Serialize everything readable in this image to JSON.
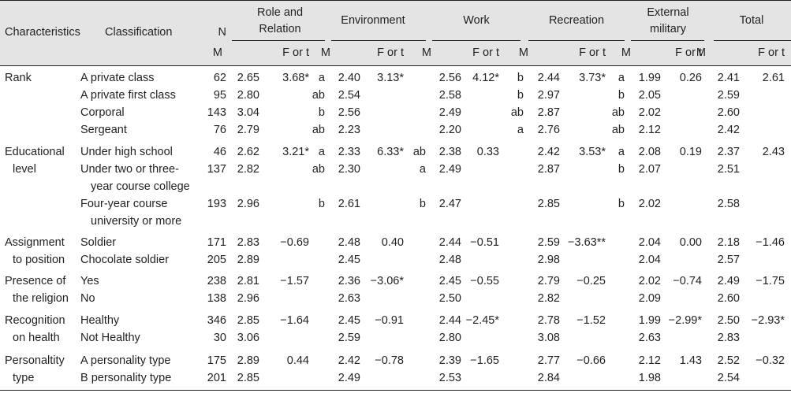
{
  "table": {
    "headers": {
      "characteristics": "Characteristics",
      "classification": "Classification",
      "n": "N",
      "groups": [
        "Role and Relation",
        "Environment",
        "Work",
        "Recreation",
        "External military",
        "Total"
      ],
      "group_lines": [
        [
          "Role and",
          "Relation"
        ],
        [
          "Environment"
        ],
        [
          "Work"
        ],
        [
          "Recreation"
        ],
        [
          "External",
          "military"
        ],
        [
          "Total"
        ]
      ],
      "m": "M",
      "f_or_t": "F or t"
    },
    "rows": [
      {
        "char": [
          "Rank"
        ],
        "cls": [
          "A private class"
        ],
        "n": "62",
        "cells": [
          [
            "2.65",
            "3.68*",
            "a"
          ],
          [
            "2.40",
            "3.13*",
            ""
          ],
          [
            "2.56",
            "4.12*",
            "b"
          ],
          [
            "2.44",
            "3.73*",
            "a"
          ],
          [
            "1.99",
            "0.26",
            ""
          ],
          [
            "2.41",
            "2.61",
            ""
          ]
        ]
      },
      {
        "char": [],
        "cls": [
          "A private first class"
        ],
        "n": "95",
        "cells": [
          [
            "2.80",
            "",
            "ab"
          ],
          [
            "2.54",
            "",
            ""
          ],
          [
            "2.58",
            "",
            "b"
          ],
          [
            "2.97",
            "",
            "b"
          ],
          [
            "2.05",
            "",
            ""
          ],
          [
            "2.59",
            "",
            ""
          ]
        ]
      },
      {
        "char": [],
        "cls": [
          "Corporal"
        ],
        "n": "143",
        "cells": [
          [
            "3.04",
            "",
            "b"
          ],
          [
            "2.56",
            "",
            ""
          ],
          [
            "2.49",
            "",
            "ab"
          ],
          [
            "2.87",
            "",
            "ab"
          ],
          [
            "2.02",
            "",
            ""
          ],
          [
            "2.60",
            "",
            ""
          ]
        ]
      },
      {
        "char": [],
        "cls": [
          "Sergeant"
        ],
        "n": "76",
        "cells": [
          [
            "2.79",
            "",
            "ab"
          ],
          [
            "2.23",
            "",
            ""
          ],
          [
            "2.20",
            "",
            "a"
          ],
          [
            "2.76",
            "",
            "ab"
          ],
          [
            "2.12",
            "",
            ""
          ],
          [
            "2.42",
            "",
            ""
          ]
        ]
      },
      {
        "char": [
          "Educational",
          "level"
        ],
        "cls": [
          "Under high school"
        ],
        "n": "46",
        "cells": [
          [
            "2.62",
            "3.21*",
            "a"
          ],
          [
            "2.33",
            "6.33*",
            "ab"
          ],
          [
            "2.38",
            "0.33",
            ""
          ],
          [
            "2.42",
            "3.53*",
            "a"
          ],
          [
            "2.08",
            "0.19",
            ""
          ],
          [
            "2.37",
            "2.43",
            ""
          ]
        ]
      },
      {
        "char": [],
        "cls": [
          "Under two or three-",
          "year course college"
        ],
        "n": "137",
        "cells": [
          [
            "2.82",
            "",
            "ab"
          ],
          [
            "2.30",
            "",
            "a"
          ],
          [
            "2.49",
            "",
            ""
          ],
          [
            "2.87",
            "",
            "b"
          ],
          [
            "2.07",
            "",
            ""
          ],
          [
            "2.51",
            "",
            ""
          ]
        ]
      },
      {
        "char": [],
        "cls": [
          "Four-year course",
          "university or more"
        ],
        "n": "193",
        "cells": [
          [
            "2.96",
            "",
            "b"
          ],
          [
            "2.61",
            "",
            "b"
          ],
          [
            "2.47",
            "",
            ""
          ],
          [
            "2.85",
            "",
            "b"
          ],
          [
            "2.02",
            "",
            ""
          ],
          [
            "2.58",
            "",
            ""
          ]
        ]
      },
      {
        "char": [
          "Assignment",
          "to position"
        ],
        "cls": [
          "Soldier"
        ],
        "n": "171",
        "cells": [
          [
            "2.83",
            "−0.69",
            ""
          ],
          [
            "2.48",
            "0.40",
            ""
          ],
          [
            "2.44",
            "−0.51",
            ""
          ],
          [
            "2.59",
            "−3.63**",
            ""
          ],
          [
            "2.04",
            "0.00",
            ""
          ],
          [
            "2.18",
            "−1.46",
            ""
          ]
        ]
      },
      {
        "char": [],
        "cls": [
          "Chocolate soldier"
        ],
        "n": "205",
        "cells": [
          [
            "2.89",
            "",
            ""
          ],
          [
            "2.45",
            "",
            ""
          ],
          [
            "2.48",
            "",
            ""
          ],
          [
            "2.98",
            "",
            ""
          ],
          [
            "2.04",
            "",
            ""
          ],
          [
            "2.57",
            "",
            ""
          ]
        ]
      },
      {
        "char": [
          "Presence of",
          "the religion"
        ],
        "cls": [
          "Yes"
        ],
        "n": "238",
        "cells": [
          [
            "2.81",
            "−1.57",
            ""
          ],
          [
            "2.36",
            "−3.06*",
            ""
          ],
          [
            "2.45",
            "−0.55",
            ""
          ],
          [
            "2.79",
            "−0.25",
            ""
          ],
          [
            "2.02",
            "−0.74",
            ""
          ],
          [
            "2.49",
            "−1.75",
            ""
          ]
        ]
      },
      {
        "char": [],
        "cls": [
          "No"
        ],
        "n": "138",
        "cells": [
          [
            "2.96",
            "",
            ""
          ],
          [
            "2.63",
            "",
            ""
          ],
          [
            "2.50",
            "",
            ""
          ],
          [
            "2.82",
            "",
            ""
          ],
          [
            "2.09",
            "",
            ""
          ],
          [
            "2.60",
            "",
            ""
          ]
        ]
      },
      {
        "char": [
          "Recognition",
          "on health"
        ],
        "cls": [
          "Healthy"
        ],
        "n": "346",
        "cells": [
          [
            "2.85",
            "−1.64",
            ""
          ],
          [
            "2.45",
            "−0.91",
            ""
          ],
          [
            "2.44",
            "−2.45*",
            ""
          ],
          [
            "2.78",
            "−1.52",
            ""
          ],
          [
            "1.99",
            "−2.99*",
            ""
          ],
          [
            "2.50",
            "−2.93*",
            ""
          ]
        ]
      },
      {
        "char": [],
        "cls": [
          "Not Healthy"
        ],
        "n": "30",
        "cells": [
          [
            "3.06",
            "",
            ""
          ],
          [
            "2.59",
            "",
            ""
          ],
          [
            "2.80",
            "",
            ""
          ],
          [
            "3.08",
            "",
            ""
          ],
          [
            "2.63",
            "",
            ""
          ],
          [
            "2.83",
            "",
            ""
          ]
        ]
      },
      {
        "char": [
          "Personaltity",
          "type"
        ],
        "cls": [
          "A personality type"
        ],
        "n": "175",
        "cells": [
          [
            "2.89",
            "0.44",
            ""
          ],
          [
            "2.42",
            "−0.78",
            ""
          ],
          [
            "2.39",
            "−1.65",
            ""
          ],
          [
            "2.77",
            "−0.66",
            ""
          ],
          [
            "2.12",
            "1.43",
            ""
          ],
          [
            "2.52",
            "−0.32",
            ""
          ]
        ]
      },
      {
        "char": [],
        "cls": [
          "B personality type"
        ],
        "n": "201",
        "cells": [
          [
            "2.85",
            "",
            ""
          ],
          [
            "2.49",
            "",
            ""
          ],
          [
            "2.53",
            "",
            ""
          ],
          [
            "2.84",
            "",
            ""
          ],
          [
            "1.98",
            "",
            ""
          ],
          [
            "2.54",
            "",
            ""
          ]
        ]
      }
    ]
  }
}
